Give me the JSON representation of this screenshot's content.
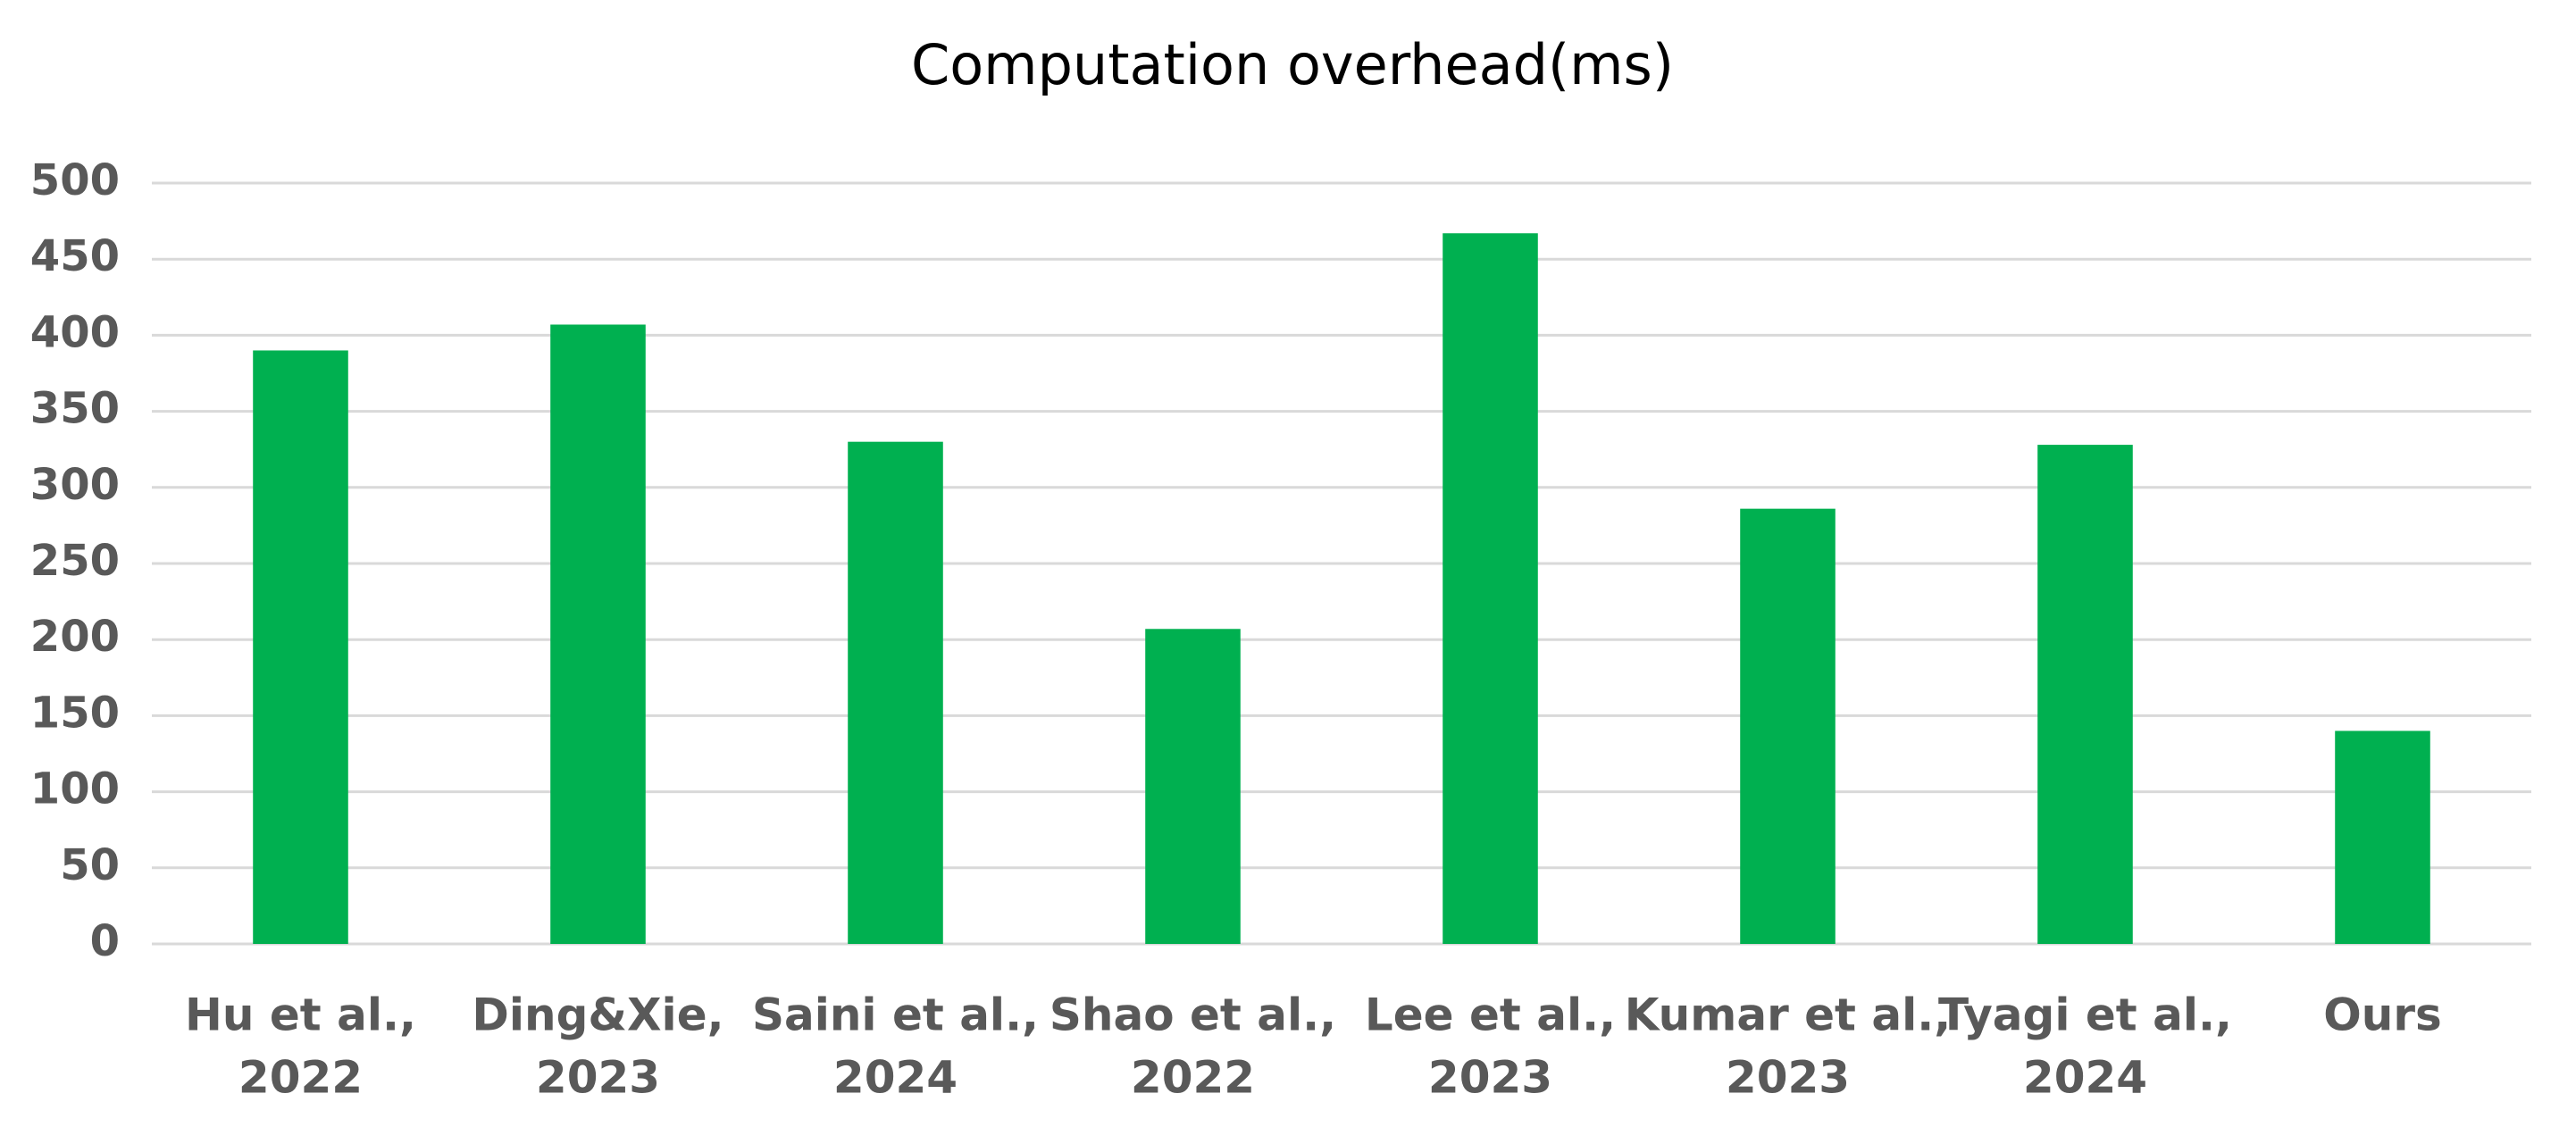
{
  "chart_data": {
    "type": "bar",
    "title": "Computation overhead(ms)",
    "categories": [
      [
        "Hu et al.,",
        "2022"
      ],
      [
        "Ding&Xie,",
        "2023"
      ],
      [
        "Saini et al.,",
        "2024"
      ],
      [
        "Shao et al.,",
        "2022"
      ],
      [
        "Lee et al.,",
        "2023"
      ],
      [
        "Kumar et al.,",
        "2023"
      ],
      [
        "Tyagi et al.,",
        "2024"
      ],
      [
        "Ours"
      ]
    ],
    "values": [
      390,
      407,
      330,
      207,
      467,
      286,
      328,
      140
    ],
    "color": "#00b050",
    "ylim": [
      0,
      500
    ],
    "yticks": [
      0,
      50,
      100,
      150,
      200,
      250,
      300,
      350,
      400,
      450,
      500
    ],
    "grid": true
  }
}
